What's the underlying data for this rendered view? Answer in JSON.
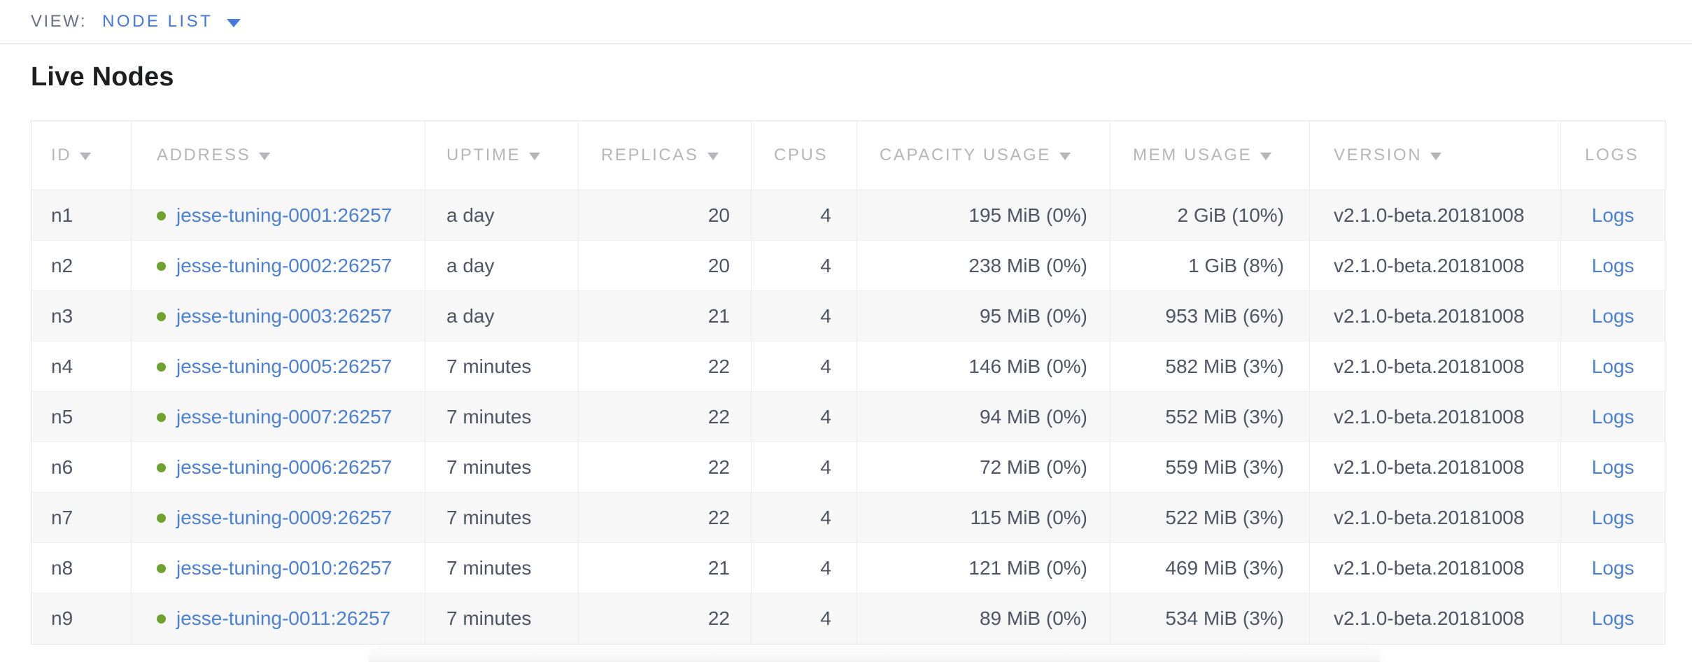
{
  "view_bar": {
    "label": "VIEW:",
    "selected": "NODE LIST"
  },
  "page": {
    "title": "Live Nodes"
  },
  "table": {
    "columns": [
      {
        "key": "id",
        "label": "ID",
        "sortable": true
      },
      {
        "key": "address",
        "label": "ADDRESS",
        "sortable": true
      },
      {
        "key": "uptime",
        "label": "UPTIME",
        "sortable": true
      },
      {
        "key": "replicas",
        "label": "REPLICAS",
        "sortable": true
      },
      {
        "key": "cpus",
        "label": "CPUS",
        "sortable": false
      },
      {
        "key": "capacity_usage",
        "label": "CAPACITY USAGE",
        "sortable": true
      },
      {
        "key": "mem_usage",
        "label": "MEM USAGE",
        "sortable": true
      },
      {
        "key": "version",
        "label": "VERSION",
        "sortable": true
      },
      {
        "key": "logs",
        "label": "LOGS",
        "sortable": false
      }
    ],
    "rows": [
      {
        "id": "n1",
        "address": "jesse-tuning-0001:26257",
        "status": "live",
        "uptime": "a day",
        "replicas": "20",
        "cpus": "4",
        "capacity_usage": "195 MiB (0%)",
        "mem_usage": "2 GiB (10%)",
        "version": "v2.1.0-beta.20181008",
        "logs": "Logs"
      },
      {
        "id": "n2",
        "address": "jesse-tuning-0002:26257",
        "status": "live",
        "uptime": "a day",
        "replicas": "20",
        "cpus": "4",
        "capacity_usage": "238 MiB (0%)",
        "mem_usage": "1 GiB (8%)",
        "version": "v2.1.0-beta.20181008",
        "logs": "Logs"
      },
      {
        "id": "n3",
        "address": "jesse-tuning-0003:26257",
        "status": "live",
        "uptime": "a day",
        "replicas": "21",
        "cpus": "4",
        "capacity_usage": "95 MiB (0%)",
        "mem_usage": "953 MiB (6%)",
        "version": "v2.1.0-beta.20181008",
        "logs": "Logs"
      },
      {
        "id": "n4",
        "address": "jesse-tuning-0005:26257",
        "status": "live",
        "uptime": "7 minutes",
        "replicas": "22",
        "cpus": "4",
        "capacity_usage": "146 MiB (0%)",
        "mem_usage": "582 MiB (3%)",
        "version": "v2.1.0-beta.20181008",
        "logs": "Logs"
      },
      {
        "id": "n5",
        "address": "jesse-tuning-0007:26257",
        "status": "live",
        "uptime": "7 minutes",
        "replicas": "22",
        "cpus": "4",
        "capacity_usage": "94 MiB (0%)",
        "mem_usage": "552 MiB (3%)",
        "version": "v2.1.0-beta.20181008",
        "logs": "Logs"
      },
      {
        "id": "n6",
        "address": "jesse-tuning-0006:26257",
        "status": "live",
        "uptime": "7 minutes",
        "replicas": "22",
        "cpus": "4",
        "capacity_usage": "72 MiB (0%)",
        "mem_usage": "559 MiB (3%)",
        "version": "v2.1.0-beta.20181008",
        "logs": "Logs"
      },
      {
        "id": "n7",
        "address": "jesse-tuning-0009:26257",
        "status": "live",
        "uptime": "7 minutes",
        "replicas": "22",
        "cpus": "4",
        "capacity_usage": "115 MiB (0%)",
        "mem_usage": "522 MiB (3%)",
        "version": "v2.1.0-beta.20181008",
        "logs": "Logs"
      },
      {
        "id": "n8",
        "address": "jesse-tuning-0010:26257",
        "status": "live",
        "uptime": "7 minutes",
        "replicas": "21",
        "cpus": "4",
        "capacity_usage": "121 MiB (0%)",
        "mem_usage": "469 MiB (3%)",
        "version": "v2.1.0-beta.20181008",
        "logs": "Logs"
      },
      {
        "id": "n9",
        "address": "jesse-tuning-0011:26257",
        "status": "live",
        "uptime": "7 minutes",
        "replicas": "22",
        "cpus": "4",
        "capacity_usage": "89 MiB (0%)",
        "mem_usage": "534 MiB (3%)",
        "version": "v2.1.0-beta.20181008",
        "logs": "Logs"
      }
    ]
  },
  "colors": {
    "accent_blue": "#4a80d9",
    "view_selector_blue": "#4579dd",
    "live_status_green": "#6ea32e",
    "header_gray": "#b6b6ba",
    "cell_text": "#4e5565",
    "row_alt_bg": "#f7f7f8"
  }
}
